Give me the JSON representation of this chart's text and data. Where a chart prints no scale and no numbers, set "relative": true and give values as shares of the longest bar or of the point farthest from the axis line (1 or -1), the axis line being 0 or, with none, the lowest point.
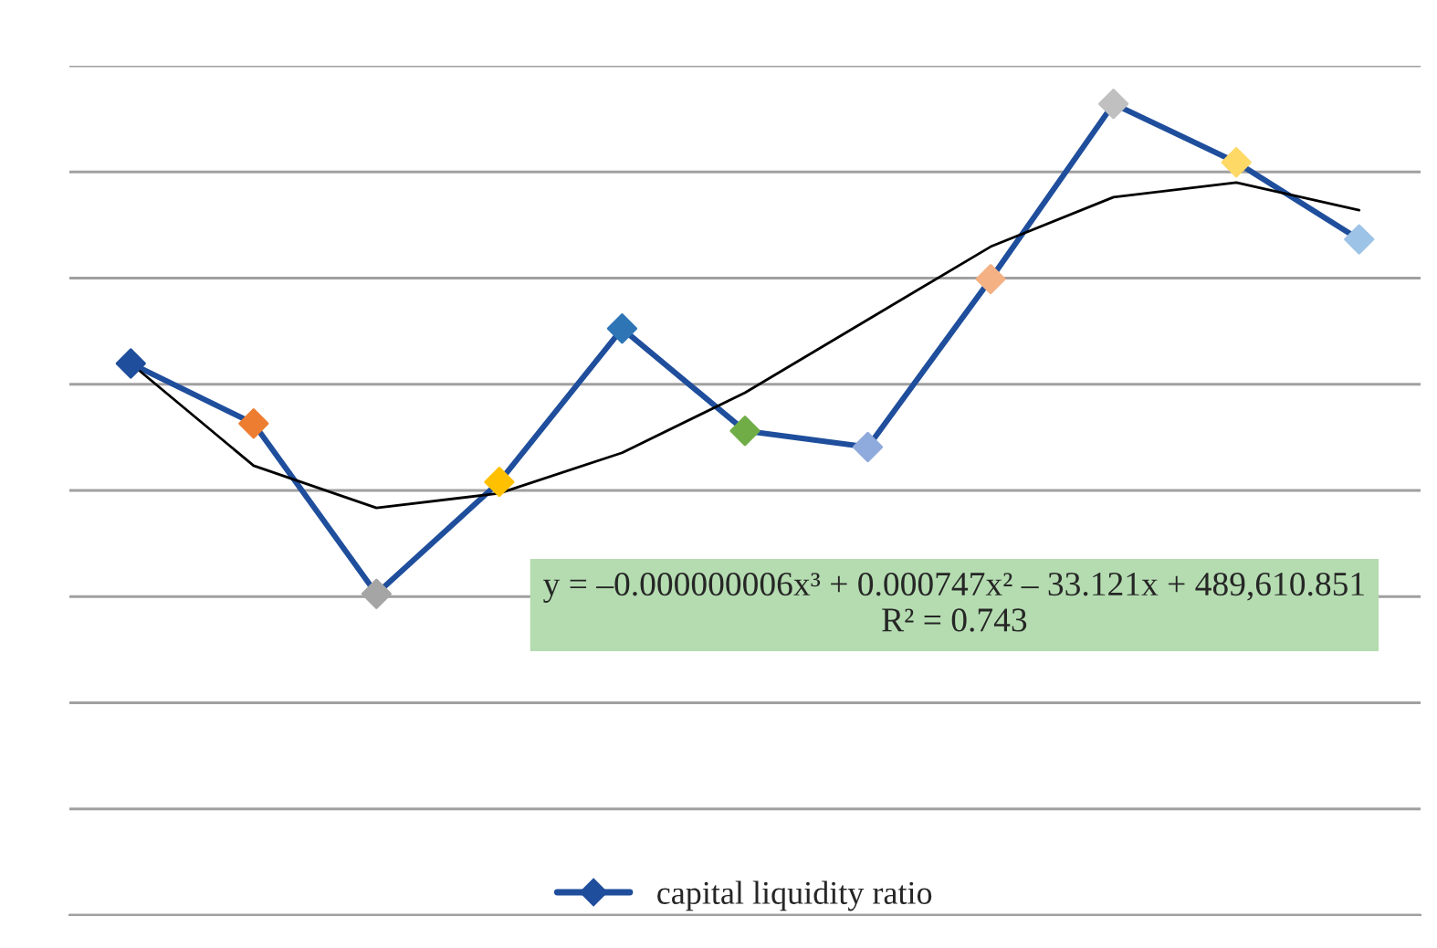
{
  "chart_data": {
    "type": "line",
    "relative": true,
    "grid": "y",
    "legend": "bottom",
    "marker": "diamond",
    "categories": [
      null,
      null,
      null,
      null,
      null,
      null,
      null,
      null,
      null,
      null,
      null
    ],
    "series": [
      {
        "name": "capital liquidity ratio",
        "color": "#1f4e9c",
        "colors": [
          "#1f4e9c",
          "#ed7d31",
          "#a5a5a5",
          "#ffc000",
          "#2e75b6",
          "#70ad47",
          "#8faadc",
          "#f4b183",
          "#c0c0c0",
          "#ffd966",
          "#9dc3e6"
        ],
        "values": [
          0.68,
          0.606,
          0.396,
          0.534,
          0.723,
          0.597,
          0.577,
          0.784,
          1,
          0.928,
          0.833
        ]
      },
      {
        "type": "line",
        "color": "#000000",
        "marker": "none",
        "values": [
          0.68,
          0.554,
          0.502,
          0.52,
          0.57,
          0.644,
          0.734,
          0.824,
          0.885,
          0.903,
          0.869
        ]
      }
    ],
    "annotations": [
      "y = –0.000000006x³ + 0.000747x² – 33.121x + 489,610.851\nR² = 0.743"
    ]
  }
}
